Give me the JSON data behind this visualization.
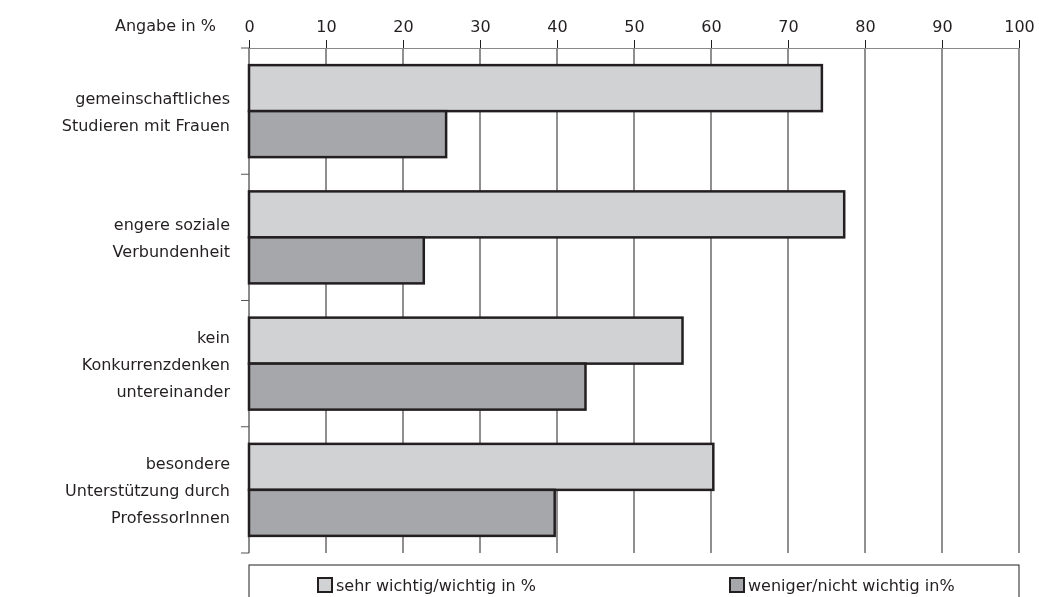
{
  "chart_data": {
    "type": "bar",
    "orientation": "horizontal",
    "xlabel": "Angabe in %",
    "categories": [
      "gemeinschaftliches\nStudieren mit Frauen",
      "engere soziale\nVerbundenheit",
      "kein\nKonkurrenzdenken\nuntereinander",
      "besondere\nUnterstützung durch\nProfessorInnen"
    ],
    "series": [
      {
        "name": "sehr wichtig/wichtig in %",
        "color": "#d1d2d4",
        "values": [
          74.4,
          77.3,
          56.3,
          60.3
        ]
      },
      {
        "name": "weniger/nicht wichtig in%",
        "color": "#a6a7ab",
        "values": [
          25.6,
          22.7,
          43.7,
          39.7
        ]
      }
    ],
    "xlim": [
      0,
      100
    ],
    "xticks": [
      0,
      10,
      20,
      30,
      40,
      50,
      60,
      70,
      80,
      90,
      100
    ],
    "grid": "x",
    "legend": "bottom"
  }
}
